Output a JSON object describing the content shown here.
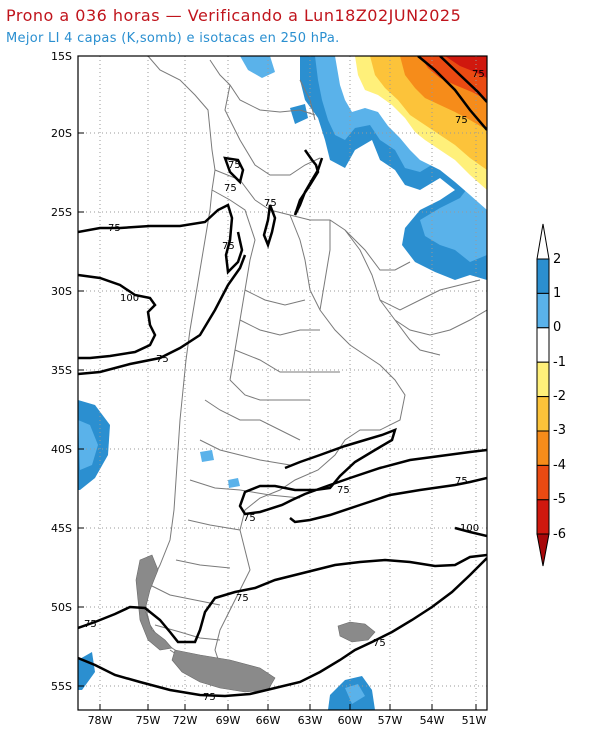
{
  "title_line1": "Prono a 036 horas — Verificando a Lun18Z02JUN2025",
  "title_line2": "Mejor LI 4 capas (K,somb) e isotacas en 250 hPa.",
  "lat_labels": [
    "15S",
    "20S",
    "25S",
    "30S",
    "35S",
    "40S",
    "45S",
    "50S",
    "55S"
  ],
  "lon_labels": [
    "78W",
    "75W",
    "72W",
    "69W",
    "66W",
    "63W",
    "60W",
    "57W",
    "54W",
    "51W"
  ],
  "colorbar": {
    "labels": [
      "2",
      "1",
      "0",
      "-1",
      "-2",
      "-3",
      "-4",
      "-5",
      "-6"
    ],
    "colors": [
      "#2b8fd0",
      "#5ab2ea",
      "#ffffff",
      "#fff07a",
      "#fcc33a",
      "#f68c1a",
      "#ea4a12",
      "#d0180e",
      "#a8080a"
    ]
  },
  "contour_labels": {
    "c1": "75",
    "c2": "75",
    "c3": "75",
    "c4": "75",
    "c5": "75",
    "c6": "75",
    "c7": "100",
    "c8": "75",
    "c9": "75",
    "c10": "75",
    "c11": "75",
    "c12": "100",
    "c13": "75",
    "c14": "75",
    "c15": "75",
    "c16": "75",
    "c17": "75"
  }
}
